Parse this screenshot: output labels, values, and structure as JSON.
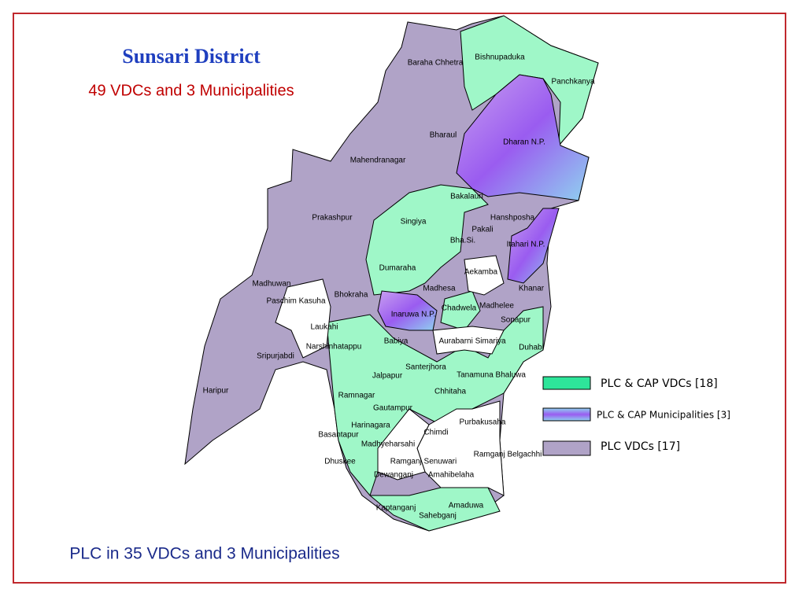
{
  "title": "Sunsari District",
  "subtitle": "49 VDCs and 3 Municipalities",
  "footer": "PLC in 35 VDCs and 3 Municipalities",
  "legend": [
    {
      "label": "PLC & CAP VDCs [18]"
    },
    {
      "label": "PLC & CAP Municipalities [3]"
    },
    {
      "label": "PLC VDCs [17]"
    }
  ],
  "regions": [
    "Baraha Chhetra",
    "Bishnupaduka",
    "Panchkanya",
    "Dharan N.P.",
    "Bharaul",
    "Mahendranagar",
    "Bakalauri",
    "Hanshposha",
    "Singiya",
    "Prakashpur",
    "Pakali",
    "Bha.Si.",
    "Itahari N.P.",
    "Dumaraha",
    "Aekamba",
    "Madhuwan",
    "Madhesa",
    "Khanar",
    "Paschim Kasuha",
    "Bhokraha",
    "Chadwela",
    "Madhelee",
    "Inaruwa N.P.",
    "Sonapur",
    "Laukahi",
    "Narshinhatappu",
    "Babiya",
    "Aurabarni Simariya",
    "Duhabi",
    "Sripurjabdi",
    "Santerjhora",
    "Jalpapur",
    "Tanamuna Bhaluwa",
    "Chhitaha",
    "Haripur",
    "Ramnagar",
    "Gautampur",
    "Harinagara",
    "Purbakusaha",
    "Chimdi",
    "Basantapur",
    "Madhyeharsahi",
    "Dhuskee",
    "Ramganj Senuwari",
    "Ramganj Belgachhi",
    "Dewanganj",
    "Amahibelaha",
    "Amaduwa",
    "Kaptanganj",
    "Sahebganj"
  ]
}
